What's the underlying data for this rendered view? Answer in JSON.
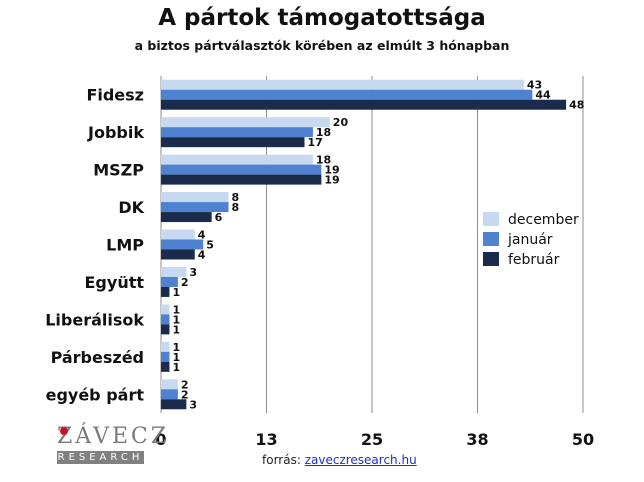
{
  "header": {
    "title": "A pártok támogatottsága",
    "subtitle": "a biztos pártválasztók körében az elmúlt 3 hónapban"
  },
  "footer": {
    "source_label": "forrás:",
    "source_link": "zaveczresearch.hu",
    "logo_main": "ZÁVECZ",
    "logo_sub": "RESEARCH"
  },
  "colors": {
    "december": "#c6d9f1",
    "január": "#4f81d1",
    "február": "#1a2b4c"
  },
  "chart_data": {
    "type": "bar",
    "orientation": "horizontal",
    "title": "A pártok támogatottsága",
    "subtitle": "a biztos pártválasztók körében az elmúlt 3 hónapban",
    "categories": [
      "Fidesz",
      "Jobbik",
      "MSZP",
      "DK",
      "LMP",
      "Együtt",
      "Liberálisok",
      "Párbeszéd",
      "egyéb párt"
    ],
    "series": [
      {
        "name": "december",
        "values": [
          43,
          20,
          18,
          8,
          4,
          3,
          1,
          1,
          2
        ]
      },
      {
        "name": "január",
        "values": [
          44,
          18,
          19,
          8,
          5,
          2,
          1,
          1,
          2
        ]
      },
      {
        "name": "február",
        "values": [
          48,
          17,
          19,
          6,
          4,
          1,
          1,
          1,
          3
        ]
      }
    ],
    "xlim": [
      0,
      50
    ],
    "xticks": [
      "0",
      "13",
      "25",
      "38",
      "50"
    ],
    "grid": "vertical",
    "legend": "right"
  }
}
